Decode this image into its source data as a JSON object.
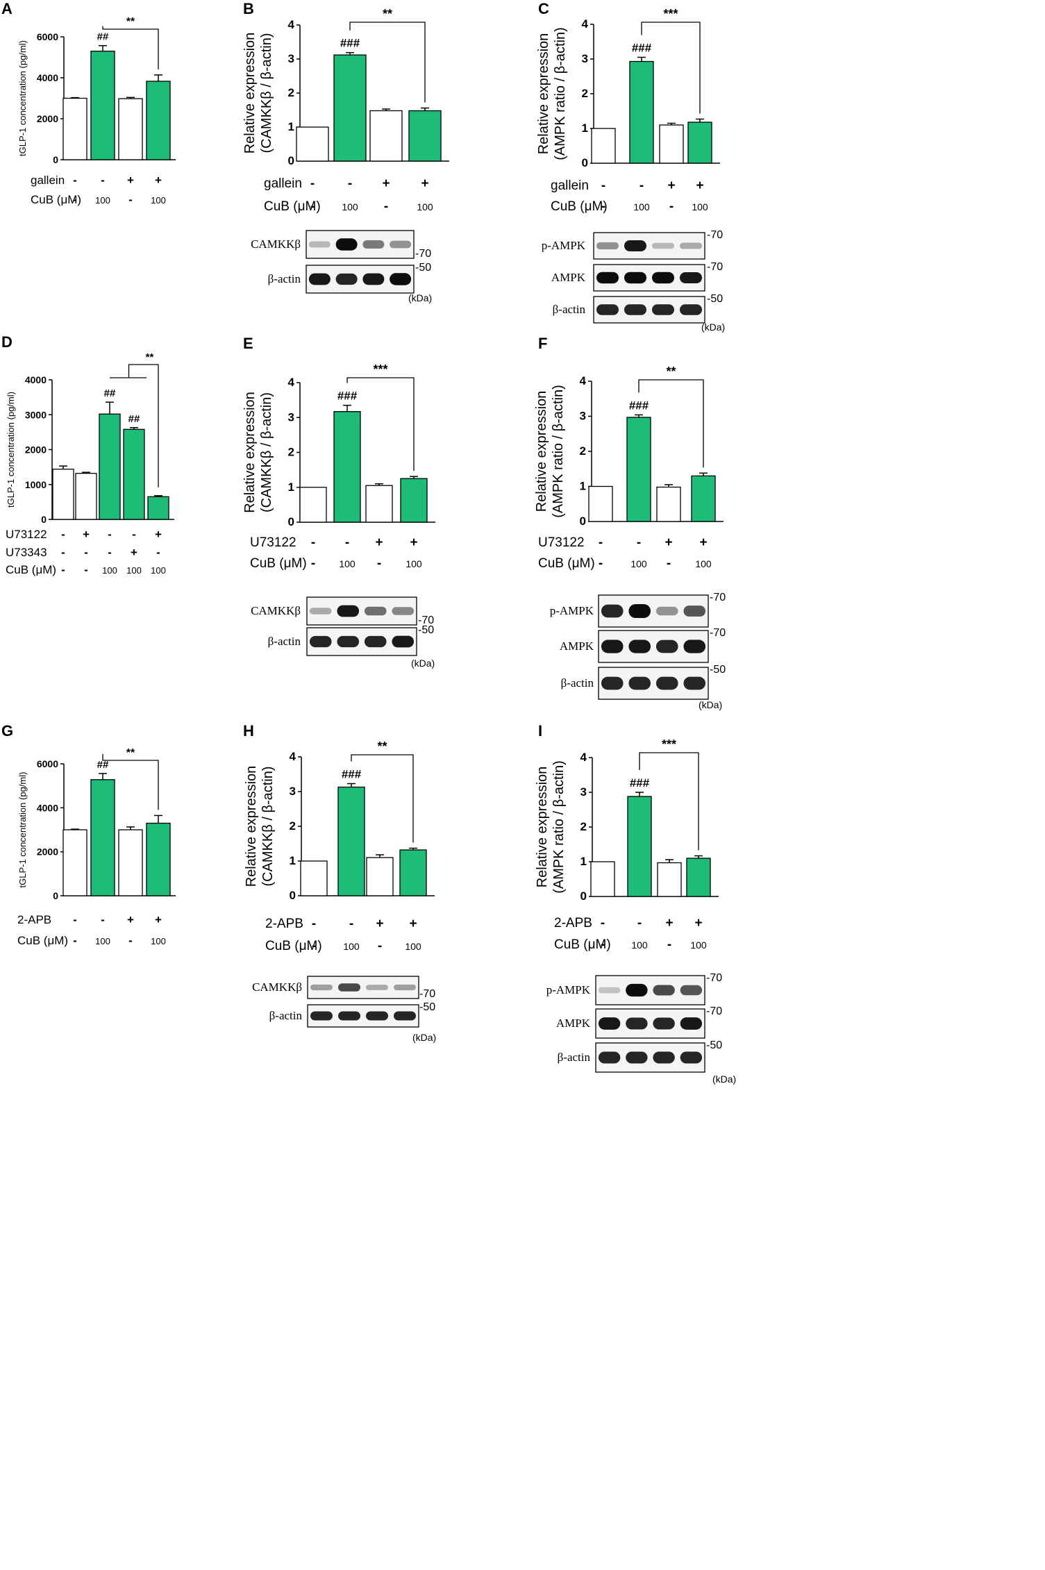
{
  "colors": {
    "green": "#1dbd78",
    "white": "#ffffff",
    "line": "#000000"
  },
  "chart_data": [
    {
      "letter": "A",
      "type": "bar",
      "ylabel": "tGLP-1 concentration (pg/ml)",
      "ylim": [
        0,
        6000
      ],
      "ticks": [
        0,
        2000,
        4000,
        6000
      ],
      "values": [
        3000,
        5300,
        2980,
        3830
      ],
      "errors": [
        30,
        270,
        60,
        310
      ],
      "fills": [
        "white",
        "green",
        "white",
        "green"
      ],
      "marks": [
        "",
        "##",
        "",
        ""
      ],
      "sig": {
        "label": "**",
        "from": 1,
        "to": 3,
        "type": "bracket"
      },
      "treatments": [
        {
          "name": "gallein",
          "values": [
            "-",
            "-",
            "+",
            "+"
          ]
        },
        {
          "name": "CuB (μM)",
          "values": [
            "-",
            "100",
            "-",
            "100"
          ]
        }
      ]
    },
    {
      "letter": "B",
      "type": "bar",
      "ylabel": [
        "Relative expression",
        "(CAMKKβ / β-actin)"
      ],
      "ylim": [
        0,
        4
      ],
      "ticks": [
        0,
        1,
        2,
        3,
        4
      ],
      "values": [
        1,
        3.12,
        1.48,
        1.48
      ],
      "errors": [
        0,
        0.07,
        0.05,
        0.08
      ],
      "fills": [
        "white",
        "green",
        "white",
        "green"
      ],
      "marks": [
        "",
        "###",
        "",
        ""
      ],
      "sig": {
        "label": "**",
        "from": 1,
        "to": 3,
        "type": "bracket"
      },
      "treatments": [
        {
          "name": "gallein",
          "values": [
            "-",
            "-",
            "+",
            "+"
          ]
        },
        {
          "name": "CuB (μM)",
          "values": [
            "-",
            "100",
            "-",
            "100"
          ]
        }
      ],
      "blot": {
        "rows": [
          "CAMKKβ",
          "β-actin"
        ],
        "markers": [
          "70",
          "50"
        ],
        "unit": "(kDa)",
        "intensity": [
          [
            0.25,
            0.95,
            0.5,
            0.4
          ],
          [
            0.9,
            0.85,
            0.9,
            0.95
          ]
        ]
      }
    },
    {
      "letter": "C",
      "type": "bar",
      "ylabel": [
        "Relative expression",
        "(AMPK ratio / β-actin)"
      ],
      "ylim": [
        0,
        4
      ],
      "ticks": [
        0,
        1,
        2,
        3,
        4
      ],
      "values": [
        1,
        2.93,
        1.1,
        1.18
      ],
      "errors": [
        0,
        0.12,
        0.05,
        0.09
      ],
      "fills": [
        "white",
        "green",
        "white",
        "green"
      ],
      "marks": [
        "",
        "###",
        "",
        ""
      ],
      "sig": {
        "label": "***",
        "from": 1,
        "to": 3,
        "type": "bracket"
      },
      "treatments": [
        {
          "name": "gallein",
          "values": [
            "-",
            "-",
            "+",
            "+"
          ]
        },
        {
          "name": "CuB (μM)",
          "values": [
            "-",
            "100",
            "-",
            "100"
          ]
        }
      ],
      "blot": {
        "rows": [
          "p-AMPK",
          "AMPK",
          "β-actin"
        ],
        "markers": [
          "70",
          "70",
          "50"
        ],
        "unit": "(kDa)",
        "intensity": [
          [
            0.4,
            0.9,
            0.25,
            0.3
          ],
          [
            0.95,
            0.95,
            0.95,
            0.9
          ],
          [
            0.85,
            0.85,
            0.85,
            0.85
          ]
        ]
      }
    },
    {
      "letter": "D",
      "type": "bar",
      "ylabel": "tGLP-1 concentration (pg/ml)",
      "ylim": [
        0,
        4000
      ],
      "ticks": [
        0,
        1000,
        2000,
        3000,
        4000
      ],
      "values": [
        1440,
        1320,
        3020,
        2580,
        650
      ],
      "errors": [
        90,
        30,
        340,
        50,
        30
      ],
      "fills": [
        "white",
        "white",
        "green",
        "green",
        "green"
      ],
      "marks": [
        "",
        "",
        "##",
        "##",
        ""
      ],
      "sig": {
        "label": "**",
        "from": 2,
        "fromEnd": 3,
        "to": 4,
        "type": "group"
      },
      "treatments": [
        {
          "name": "U73122",
          "values": [
            "-",
            "+",
            "-",
            "-",
            "+"
          ]
        },
        {
          "name": "U73343",
          "values": [
            "-",
            "-",
            "-",
            "+",
            "-"
          ]
        },
        {
          "name": "CuB (μM)",
          "values": [
            "-",
            "-",
            "100",
            "100",
            "100"
          ]
        }
      ]
    },
    {
      "letter": "E",
      "type": "bar",
      "ylabel": [
        "Relative expression",
        "(CAMKKβ / β-actin)"
      ],
      "ylim": [
        0,
        4
      ],
      "ticks": [
        0,
        1,
        2,
        3,
        4
      ],
      "values": [
        1,
        3.17,
        1.05,
        1.25
      ],
      "errors": [
        0,
        0.18,
        0.05,
        0.06
      ],
      "fills": [
        "white",
        "green",
        "white",
        "green"
      ],
      "marks": [
        "",
        "###",
        "",
        ""
      ],
      "sig": {
        "label": "***",
        "from": 1,
        "to": 3,
        "type": "bracket"
      },
      "treatments": [
        {
          "name": "U73122",
          "values": [
            "-",
            "-",
            "+",
            "+"
          ]
        },
        {
          "name": "CuB (μM)",
          "values": [
            "-",
            "100",
            "-",
            "100"
          ]
        }
      ],
      "blot": {
        "rows": [
          "CAMKKβ",
          "β-actin"
        ],
        "markers": [
          "70",
          "50"
        ],
        "unit": "(kDa)",
        "intensity": [
          [
            0.3,
            0.9,
            0.55,
            0.45
          ],
          [
            0.85,
            0.85,
            0.85,
            0.9
          ]
        ]
      }
    },
    {
      "letter": "F",
      "type": "bar",
      "ylabel": [
        "Relative expression",
        "(AMPK ratio / β-actin)"
      ],
      "ylim": [
        0,
        4
      ],
      "ticks": [
        0,
        1,
        2,
        3,
        4
      ],
      "values": [
        1,
        2.97,
        0.98,
        1.3
      ],
      "errors": [
        0,
        0.07,
        0.07,
        0.08
      ],
      "fills": [
        "white",
        "green",
        "white",
        "green"
      ],
      "marks": [
        "",
        "###",
        "",
        ""
      ],
      "sig": {
        "label": "**",
        "from": 1,
        "to": 3,
        "type": "bracket"
      },
      "treatments": [
        {
          "name": "U73122",
          "values": [
            "-",
            "-",
            "+",
            "+"
          ]
        },
        {
          "name": "CuB (μM)",
          "values": [
            "-",
            "100",
            "-",
            "100"
          ]
        }
      ],
      "blot": {
        "rows": [
          "p-AMPK",
          "AMPK",
          "β-actin"
        ],
        "markers": [
          "70",
          "70",
          "50"
        ],
        "unit": "(kDa)",
        "intensity": [
          [
            0.85,
            0.95,
            0.4,
            0.65
          ],
          [
            0.9,
            0.9,
            0.85,
            0.9
          ],
          [
            0.85,
            0.85,
            0.85,
            0.85
          ]
        ]
      }
    },
    {
      "letter": "G",
      "type": "bar",
      "ylabel": "tGLP-1 concentration (pg/ml)",
      "ylim": [
        0,
        6000
      ],
      "ticks": [
        0,
        2000,
        4000,
        6000
      ],
      "values": [
        3000,
        5280,
        3000,
        3300
      ],
      "errors": [
        30,
        280,
        130,
        350
      ],
      "fills": [
        "white",
        "green",
        "white",
        "green"
      ],
      "marks": [
        "",
        "##",
        "",
        ""
      ],
      "sig": {
        "label": "**",
        "from": 1,
        "to": 3,
        "type": "bracket"
      },
      "treatments": [
        {
          "name": "2-APB",
          "values": [
            "-",
            "-",
            "+",
            "+"
          ]
        },
        {
          "name": "CuB (μM)",
          "values": [
            "-",
            "100",
            "-",
            "100"
          ]
        }
      ]
    },
    {
      "letter": "H",
      "type": "bar",
      "ylabel": [
        "Relative expression",
        "(CAMKKβ / β-actin)"
      ],
      "ylim": [
        0,
        4
      ],
      "ticks": [
        0,
        1,
        2,
        3,
        4
      ],
      "values": [
        1,
        3.13,
        1.1,
        1.32
      ],
      "errors": [
        0,
        0.1,
        0.08,
        0.05
      ],
      "fills": [
        "white",
        "green",
        "white",
        "green"
      ],
      "marks": [
        "",
        "###",
        "",
        ""
      ],
      "sig": {
        "label": "**",
        "from": 1,
        "to": 3,
        "type": "bracket"
      },
      "treatments": [
        {
          "name": "2-APB",
          "values": [
            "-",
            "-",
            "+",
            "+"
          ]
        },
        {
          "name": "CuB (μM)",
          "values": [
            "-",
            "100",
            "-",
            "100"
          ]
        }
      ],
      "blot": {
        "rows": [
          "CAMKKβ",
          "β-actin"
        ],
        "markers": [
          "70",
          "50"
        ],
        "unit": "(kDa)",
        "intensity": [
          [
            0.35,
            0.7,
            0.3,
            0.35
          ],
          [
            0.85,
            0.85,
            0.85,
            0.85
          ]
        ]
      }
    },
    {
      "letter": "I",
      "type": "bar",
      "ylabel": [
        "Relative expression",
        "(AMPK ratio / β-actin)"
      ],
      "ylim": [
        0,
        4
      ],
      "ticks": [
        0,
        1,
        2,
        3,
        4
      ],
      "values": [
        1,
        2.88,
        0.97,
        1.1
      ],
      "errors": [
        0,
        0.12,
        0.09,
        0.07
      ],
      "fills": [
        "white",
        "green",
        "white",
        "green"
      ],
      "marks": [
        "",
        "###",
        "",
        ""
      ],
      "sig": {
        "label": "***",
        "from": 1,
        "to": 3,
        "type": "bracket"
      },
      "treatments": [
        {
          "name": "2-APB",
          "values": [
            "-",
            "-",
            "+",
            "+"
          ]
        },
        {
          "name": "CuB (μM)",
          "values": [
            "-",
            "100",
            "-",
            "100"
          ]
        }
      ],
      "blot": {
        "rows": [
          "p-AMPK",
          "AMPK",
          "β-actin"
        ],
        "markers": [
          "70",
          "70",
          "50"
        ],
        "unit": "(kDa)",
        "intensity": [
          [
            0.2,
            0.95,
            0.7,
            0.65
          ],
          [
            0.9,
            0.85,
            0.85,
            0.9
          ],
          [
            0.85,
            0.85,
            0.85,
            0.85
          ]
        ]
      }
    }
  ]
}
